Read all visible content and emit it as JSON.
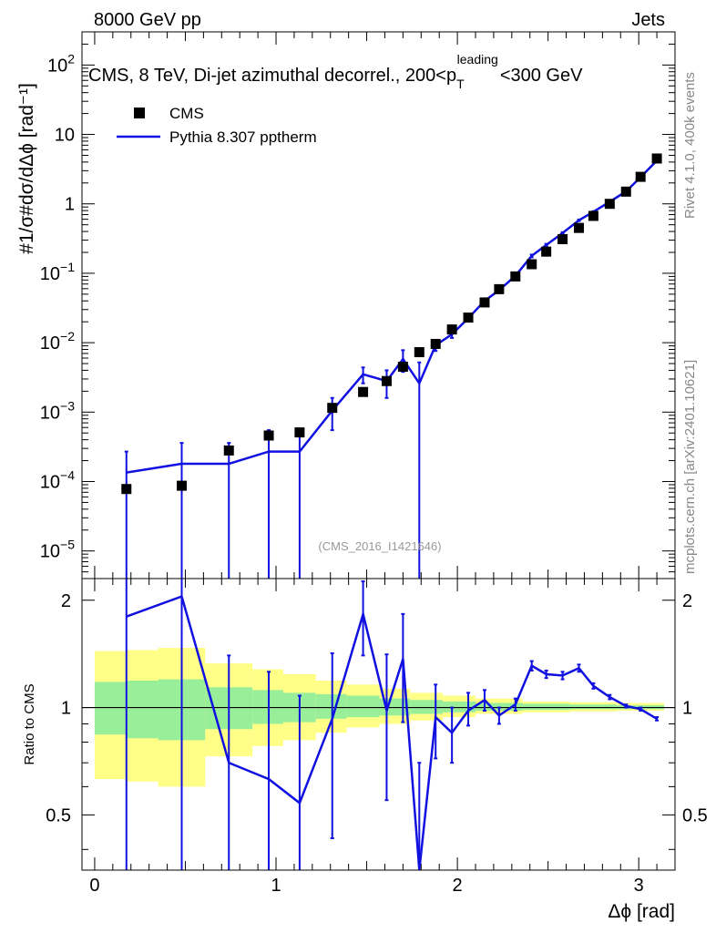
{
  "header": {
    "left": "8000 GeV pp",
    "right": "Jets"
  },
  "side_labels": {
    "rivet": "Rivet 4.1.0,  400k events",
    "mcplots": "mcplots.cern.ch [arXiv:2401.10621]"
  },
  "colors": {
    "data": "#000000",
    "mc": "#1010e0",
    "band_inner": "#99ee99",
    "band_outer": "#ffff88",
    "ref_line": "#000000"
  },
  "chart_data": {
    "type": "scatter",
    "title_main": "CMS, 8 TeV, Di-jet azimuthal decorrel., 200<p",
    "title_sub": "T",
    "title_sup": "leading",
    "title_end": "<300 GeV",
    "watermark": "(CMS_2016_I1421646)",
    "legend": {
      "data_label": "CMS",
      "mc_label": "Pythia 8.307 pptherm",
      "position": "top-left"
    },
    "ylabel_main": "#1/σ#dσ/dΔϕ [rad⁻¹]",
    "ylabel_ratio": "Ratio to CMS",
    "xlabel": "Δϕ [rad]",
    "xlim": [
      -0.07,
      3.2
    ],
    "ylim_main": [
      4e-06,
      300
    ],
    "ylim_ratio": [
      0.35,
      2.3
    ],
    "xticks": [
      0,
      1,
      2,
      3
    ],
    "xtick_labels": [
      "0",
      "1",
      "2",
      "3"
    ],
    "ytick_main_labels": [
      {
        "base": "10",
        "exp": "2"
      },
      {
        "base": "10",
        "exp": ""
      },
      {
        "base": "1",
        "exp": ""
      },
      {
        "base": "10",
        "exp": "−1"
      },
      {
        "base": "10",
        "exp": "−2"
      },
      {
        "base": "10",
        "exp": "−3"
      },
      {
        "base": "10",
        "exp": "−4"
      },
      {
        "base": "10",
        "exp": "−5"
      }
    ],
    "ytick_main_values": [
      100,
      10,
      1,
      0.1,
      0.01,
      0.001,
      0.0001,
      1e-05
    ],
    "ytick_ratio_values": [
      0.5,
      1,
      2
    ],
    "ytick_ratio_labels": [
      "0.5",
      "1",
      "2"
    ],
    "data_points": [
      {
        "x": 0.175,
        "y": 7.8e-05
      },
      {
        "x": 0.48,
        "y": 8.7e-05
      },
      {
        "x": 0.74,
        "y": 0.00028
      },
      {
        "x": 0.96,
        "y": 0.00046
      },
      {
        "x": 1.13,
        "y": 0.00051
      },
      {
        "x": 1.31,
        "y": 0.00115
      },
      {
        "x": 1.48,
        "y": 0.00195
      },
      {
        "x": 1.61,
        "y": 0.0028
      },
      {
        "x": 1.7,
        "y": 0.0045
      },
      {
        "x": 1.79,
        "y": 0.0073
      },
      {
        "x": 1.88,
        "y": 0.0096
      },
      {
        "x": 1.97,
        "y": 0.0155
      },
      {
        "x": 2.06,
        "y": 0.023
      },
      {
        "x": 2.15,
        "y": 0.038
      },
      {
        "x": 2.23,
        "y": 0.059
      },
      {
        "x": 2.32,
        "y": 0.09
      },
      {
        "x": 2.41,
        "y": 0.135
      },
      {
        "x": 2.49,
        "y": 0.205
      },
      {
        "x": 2.58,
        "y": 0.31
      },
      {
        "x": 2.67,
        "y": 0.45
      },
      {
        "x": 2.75,
        "y": 0.67
      },
      {
        "x": 2.84,
        "y": 1.0
      },
      {
        "x": 2.93,
        "y": 1.5
      },
      {
        "x": 3.01,
        "y": 2.45
      },
      {
        "x": 3.1,
        "y": 4.5
      }
    ],
    "mc_points": [
      {
        "x": 0.175,
        "y": 0.000135,
        "ylo": 1e-06,
        "yhi": 0.00027
      },
      {
        "x": 0.48,
        "y": 0.00018,
        "ylo": 1e-06,
        "yhi": 0.00036
      },
      {
        "x": 0.74,
        "y": 0.00018,
        "ylo": 1e-06,
        "yhi": 0.00036
      },
      {
        "x": 0.96,
        "y": 0.00027,
        "ylo": 1e-06,
        "yhi": 0.00055
      },
      {
        "x": 1.13,
        "y": 0.00027,
        "ylo": 1e-06,
        "yhi": 0.00055
      },
      {
        "x": 1.31,
        "y": 0.00105,
        "ylo": 0.00055,
        "yhi": 0.0016
      },
      {
        "x": 1.48,
        "y": 0.0035,
        "ylo": 0.0026,
        "yhi": 0.0044
      },
      {
        "x": 1.61,
        "y": 0.0028,
        "ylo": 0.0016,
        "yhi": 0.004
      },
      {
        "x": 1.7,
        "y": 0.0058,
        "ylo": 0.0038,
        "yhi": 0.0078
      },
      {
        "x": 1.79,
        "y": 0.0026,
        "ylo": 1e-06,
        "yhi": 0.0052
      },
      {
        "x": 1.88,
        "y": 0.0092,
        "ylo": 0.0076,
        "yhi": 0.0108
      },
      {
        "x": 1.97,
        "y": 0.0132,
        "ylo": 0.0117,
        "yhi": 0.0147
      },
      {
        "x": 2.06,
        "y": 0.0225,
        "ylo": 0.0205,
        "yhi": 0.0245
      },
      {
        "x": 2.15,
        "y": 0.04,
        "ylo": 0.038,
        "yhi": 0.042
      },
      {
        "x": 2.23,
        "y": 0.057,
        "ylo": 0.054,
        "yhi": 0.06
      },
      {
        "x": 2.32,
        "y": 0.092,
        "ylo": 0.088,
        "yhi": 0.096
      },
      {
        "x": 2.41,
        "y": 0.178,
        "ylo": 0.17,
        "yhi": 0.186
      },
      {
        "x": 2.49,
        "y": 0.255,
        "ylo": 0.245,
        "yhi": 0.265
      },
      {
        "x": 2.58,
        "y": 0.38,
        "ylo": 0.37,
        "yhi": 0.39
      },
      {
        "x": 2.67,
        "y": 0.58,
        "ylo": 0.565,
        "yhi": 0.595
      },
      {
        "x": 2.75,
        "y": 0.77,
        "ylo": 0.755,
        "yhi": 0.785
      },
      {
        "x": 2.84,
        "y": 1.07,
        "ylo": 1.05,
        "yhi": 1.09
      },
      {
        "x": 2.93,
        "y": 1.51,
        "ylo": 1.49,
        "yhi": 1.53
      },
      {
        "x": 3.01,
        "y": 2.42,
        "ylo": 2.39,
        "yhi": 2.45
      },
      {
        "x": 3.1,
        "y": 4.2,
        "ylo": 4.15,
        "yhi": 4.25
      }
    ],
    "ratio_points": [
      {
        "x": 0.175,
        "y": 1.8,
        "ylo": 0.3,
        "yhi": 3.5
      },
      {
        "x": 0.48,
        "y": 2.05,
        "ylo": 0.3,
        "yhi": 4.1
      },
      {
        "x": 0.74,
        "y": 0.7,
        "ylo": 0.3,
        "yhi": 1.4
      },
      {
        "x": 0.96,
        "y": 0.63,
        "ylo": 0.3,
        "yhi": 1.26
      },
      {
        "x": 1.13,
        "y": 0.54,
        "ylo": 0.3,
        "yhi": 1.08
      },
      {
        "x": 1.31,
        "y": 0.93,
        "ylo": 0.43,
        "yhi": 1.42
      },
      {
        "x": 1.48,
        "y": 1.83,
        "ylo": 1.4,
        "yhi": 2.26
      },
      {
        "x": 1.61,
        "y": 0.98,
        "ylo": 0.55,
        "yhi": 1.41
      },
      {
        "x": 1.7,
        "y": 1.37,
        "ylo": 0.91,
        "yhi": 1.83
      },
      {
        "x": 1.79,
        "y": 0.33,
        "ylo": 0.3,
        "yhi": 0.7
      },
      {
        "x": 1.88,
        "y": 0.94,
        "ylo": 0.72,
        "yhi": 1.16
      },
      {
        "x": 1.97,
        "y": 0.85,
        "ylo": 0.7,
        "yhi": 1.0
      },
      {
        "x": 2.06,
        "y": 0.98,
        "ylo": 0.89,
        "yhi": 1.1
      },
      {
        "x": 2.15,
        "y": 1.05,
        "ylo": 0.98,
        "yhi": 1.12
      },
      {
        "x": 2.23,
        "y": 0.95,
        "ylo": 0.9,
        "yhi": 1.0
      },
      {
        "x": 2.32,
        "y": 1.02,
        "ylo": 0.98,
        "yhi": 1.06
      },
      {
        "x": 2.41,
        "y": 1.31,
        "ylo": 1.27,
        "yhi": 1.35
      },
      {
        "x": 2.49,
        "y": 1.24,
        "ylo": 1.21,
        "yhi": 1.27
      },
      {
        "x": 2.58,
        "y": 1.23,
        "ylo": 1.2,
        "yhi": 1.26
      },
      {
        "x": 2.67,
        "y": 1.29,
        "ylo": 1.26,
        "yhi": 1.32
      },
      {
        "x": 2.75,
        "y": 1.15,
        "ylo": 1.13,
        "yhi": 1.17
      },
      {
        "x": 2.84,
        "y": 1.07,
        "ylo": 1.055,
        "yhi": 1.085
      },
      {
        "x": 2.93,
        "y": 1.01,
        "ylo": 1.0,
        "yhi": 1.02
      },
      {
        "x": 3.01,
        "y": 0.99,
        "ylo": 0.98,
        "yhi": 1.0
      },
      {
        "x": 3.1,
        "y": 0.93,
        "ylo": 0.92,
        "yhi": 0.94
      }
    ],
    "band_bins": [
      {
        "x0": 0.0,
        "x1": 0.17,
        "in_lo": 0.84,
        "in_hi": 1.18,
        "out_lo": 0.63,
        "out_hi": 1.44
      },
      {
        "x0": 0.17,
        "x1": 0.35,
        "in_lo": 0.82,
        "in_hi": 1.19,
        "out_lo": 0.62,
        "out_hi": 1.45
      },
      {
        "x0": 0.35,
        "x1": 0.61,
        "in_lo": 0.81,
        "in_hi": 1.2,
        "out_lo": 0.6,
        "out_hi": 1.47
      },
      {
        "x0": 0.61,
        "x1": 0.87,
        "in_lo": 0.87,
        "in_hi": 1.14,
        "out_lo": 0.73,
        "out_hi": 1.33
      },
      {
        "x0": 0.87,
        "x1": 1.04,
        "in_lo": 0.9,
        "in_hi": 1.12,
        "out_lo": 0.78,
        "out_hi": 1.28
      },
      {
        "x0": 1.04,
        "x1": 1.22,
        "in_lo": 0.91,
        "in_hi": 1.1,
        "out_lo": 0.81,
        "out_hi": 1.24
      },
      {
        "x0": 1.22,
        "x1": 1.39,
        "in_lo": 0.93,
        "in_hi": 1.09,
        "out_lo": 0.85,
        "out_hi": 1.19
      },
      {
        "x0": 1.39,
        "x1": 1.57,
        "in_lo": 0.94,
        "in_hi": 1.08,
        "out_lo": 0.88,
        "out_hi": 1.16
      },
      {
        "x0": 1.57,
        "x1": 1.74,
        "in_lo": 0.95,
        "in_hi": 1.06,
        "out_lo": 0.9,
        "out_hi": 1.13
      },
      {
        "x0": 1.74,
        "x1": 1.92,
        "in_lo": 0.96,
        "in_hi": 1.05,
        "out_lo": 0.92,
        "out_hi": 1.1
      },
      {
        "x0": 1.92,
        "x1": 2.1,
        "in_lo": 0.97,
        "in_hi": 1.04,
        "out_lo": 0.94,
        "out_hi": 1.08
      },
      {
        "x0": 2.1,
        "x1": 2.36,
        "in_lo": 0.98,
        "in_hi": 1.03,
        "out_lo": 0.96,
        "out_hi": 1.06
      },
      {
        "x0": 2.36,
        "x1": 2.62,
        "in_lo": 0.985,
        "in_hi": 1.025,
        "out_lo": 0.97,
        "out_hi": 1.04
      },
      {
        "x0": 2.62,
        "x1": 2.88,
        "in_lo": 0.99,
        "in_hi": 1.02,
        "out_lo": 0.975,
        "out_hi": 1.035
      },
      {
        "x0": 2.88,
        "x1": 3.14,
        "in_lo": 0.99,
        "in_hi": 1.015,
        "out_lo": 0.98,
        "out_hi": 1.03
      }
    ]
  }
}
